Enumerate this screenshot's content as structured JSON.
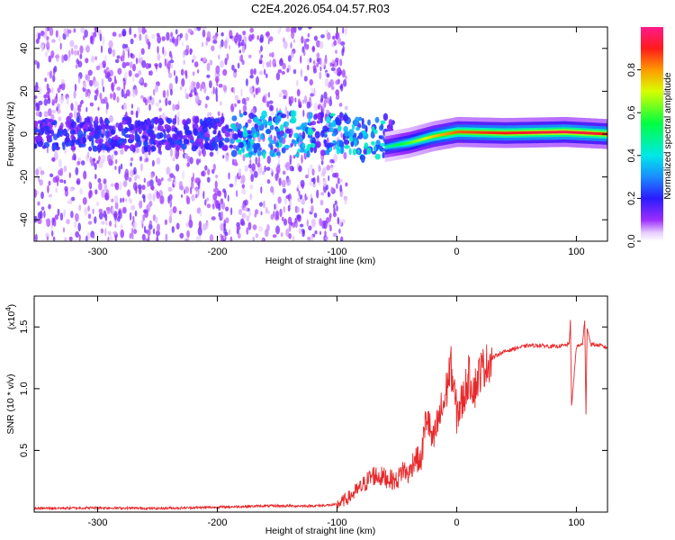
{
  "figure_title": "C2E4.2026.054.04.57.R03",
  "chart_data": [
    {
      "type": "heatmap",
      "name": "spectrogram",
      "title": "",
      "xlabel": "Height of straight line (km)",
      "ylabel": "Frequency (Hz)",
      "xlim": [
        -353,
        126
      ],
      "ylim": [
        -50,
        50
      ],
      "x_ticks": [
        -300,
        -200,
        -100,
        0,
        100
      ],
      "x_tick_labels": [
        "-300",
        "-200",
        "-100",
        "0",
        "100"
      ],
      "y_ticks": [
        -40,
        -20,
        0,
        20,
        40
      ],
      "y_tick_labels": [
        "-40",
        "-20",
        "0",
        "20",
        "40"
      ],
      "colorbar": {
        "label": "Normalized spectral amplitude",
        "range": [
          0,
          1
        ],
        "ticks": [
          0.0,
          0.2,
          0.4,
          0.6,
          0.8
        ],
        "tick_labels": [
          "0.0",
          "0.2",
          "0.4",
          "0.6",
          "0.8"
        ],
        "colormap": "rainbow (white-violet-blue-cyan-green-yellow-red-magenta)"
      },
      "features": {
        "noise_region_x": [
          -353,
          -112
        ],
        "carrier_trace": [
          {
            "x": -60,
            "freq": -6,
            "amp": 0.45
          },
          {
            "x": -40,
            "freq": -4,
            "amp": 0.6
          },
          {
            "x": -20,
            "freq": -1,
            "amp": 0.75
          },
          {
            "x": 0,
            "freq": 1,
            "amp": 0.85
          },
          {
            "x": 40,
            "freq": 0.5,
            "amp": 0.9
          },
          {
            "x": 90,
            "freq": 1,
            "amp": 0.95
          },
          {
            "x": 126,
            "freq": 0,
            "amp": 0.9
          }
        ]
      }
    },
    {
      "type": "line",
      "name": "snr",
      "title": "",
      "xlabel": "Height of straight line (km)",
      "ylabel": "SNR (10 * v/v)",
      "y_multiplier": "(x10",
      "y_multiplier_exp": "4",
      "y_multiplier_close": ")",
      "xlim": [
        -353,
        126
      ],
      "ylim": [
        0,
        1.75
      ],
      "x_ticks": [
        -300,
        -200,
        -100,
        0,
        100
      ],
      "x_tick_labels": [
        "-300",
        "-200",
        "-100",
        "0",
        "100"
      ],
      "y_ticks": [
        0.5,
        1.0,
        1.5
      ],
      "y_tick_labels": [
        "0.5",
        "1.0",
        "1.5"
      ],
      "series": [
        {
          "name": "SNR",
          "color": "#e8282a",
          "x": [
            -353,
            -300,
            -250,
            -200,
            -160,
            -120,
            -100,
            -90,
            -80,
            -70,
            -60,
            -50,
            -45,
            -40,
            -35,
            -30,
            -25,
            -20,
            -15,
            -10,
            -5,
            0,
            5,
            10,
            15,
            20,
            25,
            30,
            35,
            40,
            50,
            60,
            70,
            80,
            90,
            94,
            95,
            96,
            100,
            105,
            107,
            108,
            109,
            112,
            120,
            126
          ],
          "y": [
            0.03,
            0.035,
            0.03,
            0.04,
            0.05,
            0.05,
            0.06,
            0.12,
            0.2,
            0.3,
            0.28,
            0.25,
            0.35,
            0.3,
            0.45,
            0.4,
            0.8,
            0.55,
            0.75,
            0.9,
            1.2,
            0.8,
            0.9,
            1.1,
            1.0,
            1.15,
            1.2,
            1.25,
            1.28,
            1.3,
            1.33,
            1.35,
            1.35,
            1.34,
            1.35,
            1.36,
            1.55,
            0.85,
            1.34,
            1.36,
            1.55,
            0.78,
            1.5,
            1.36,
            1.35,
            1.33
          ]
        }
      ]
    }
  ]
}
